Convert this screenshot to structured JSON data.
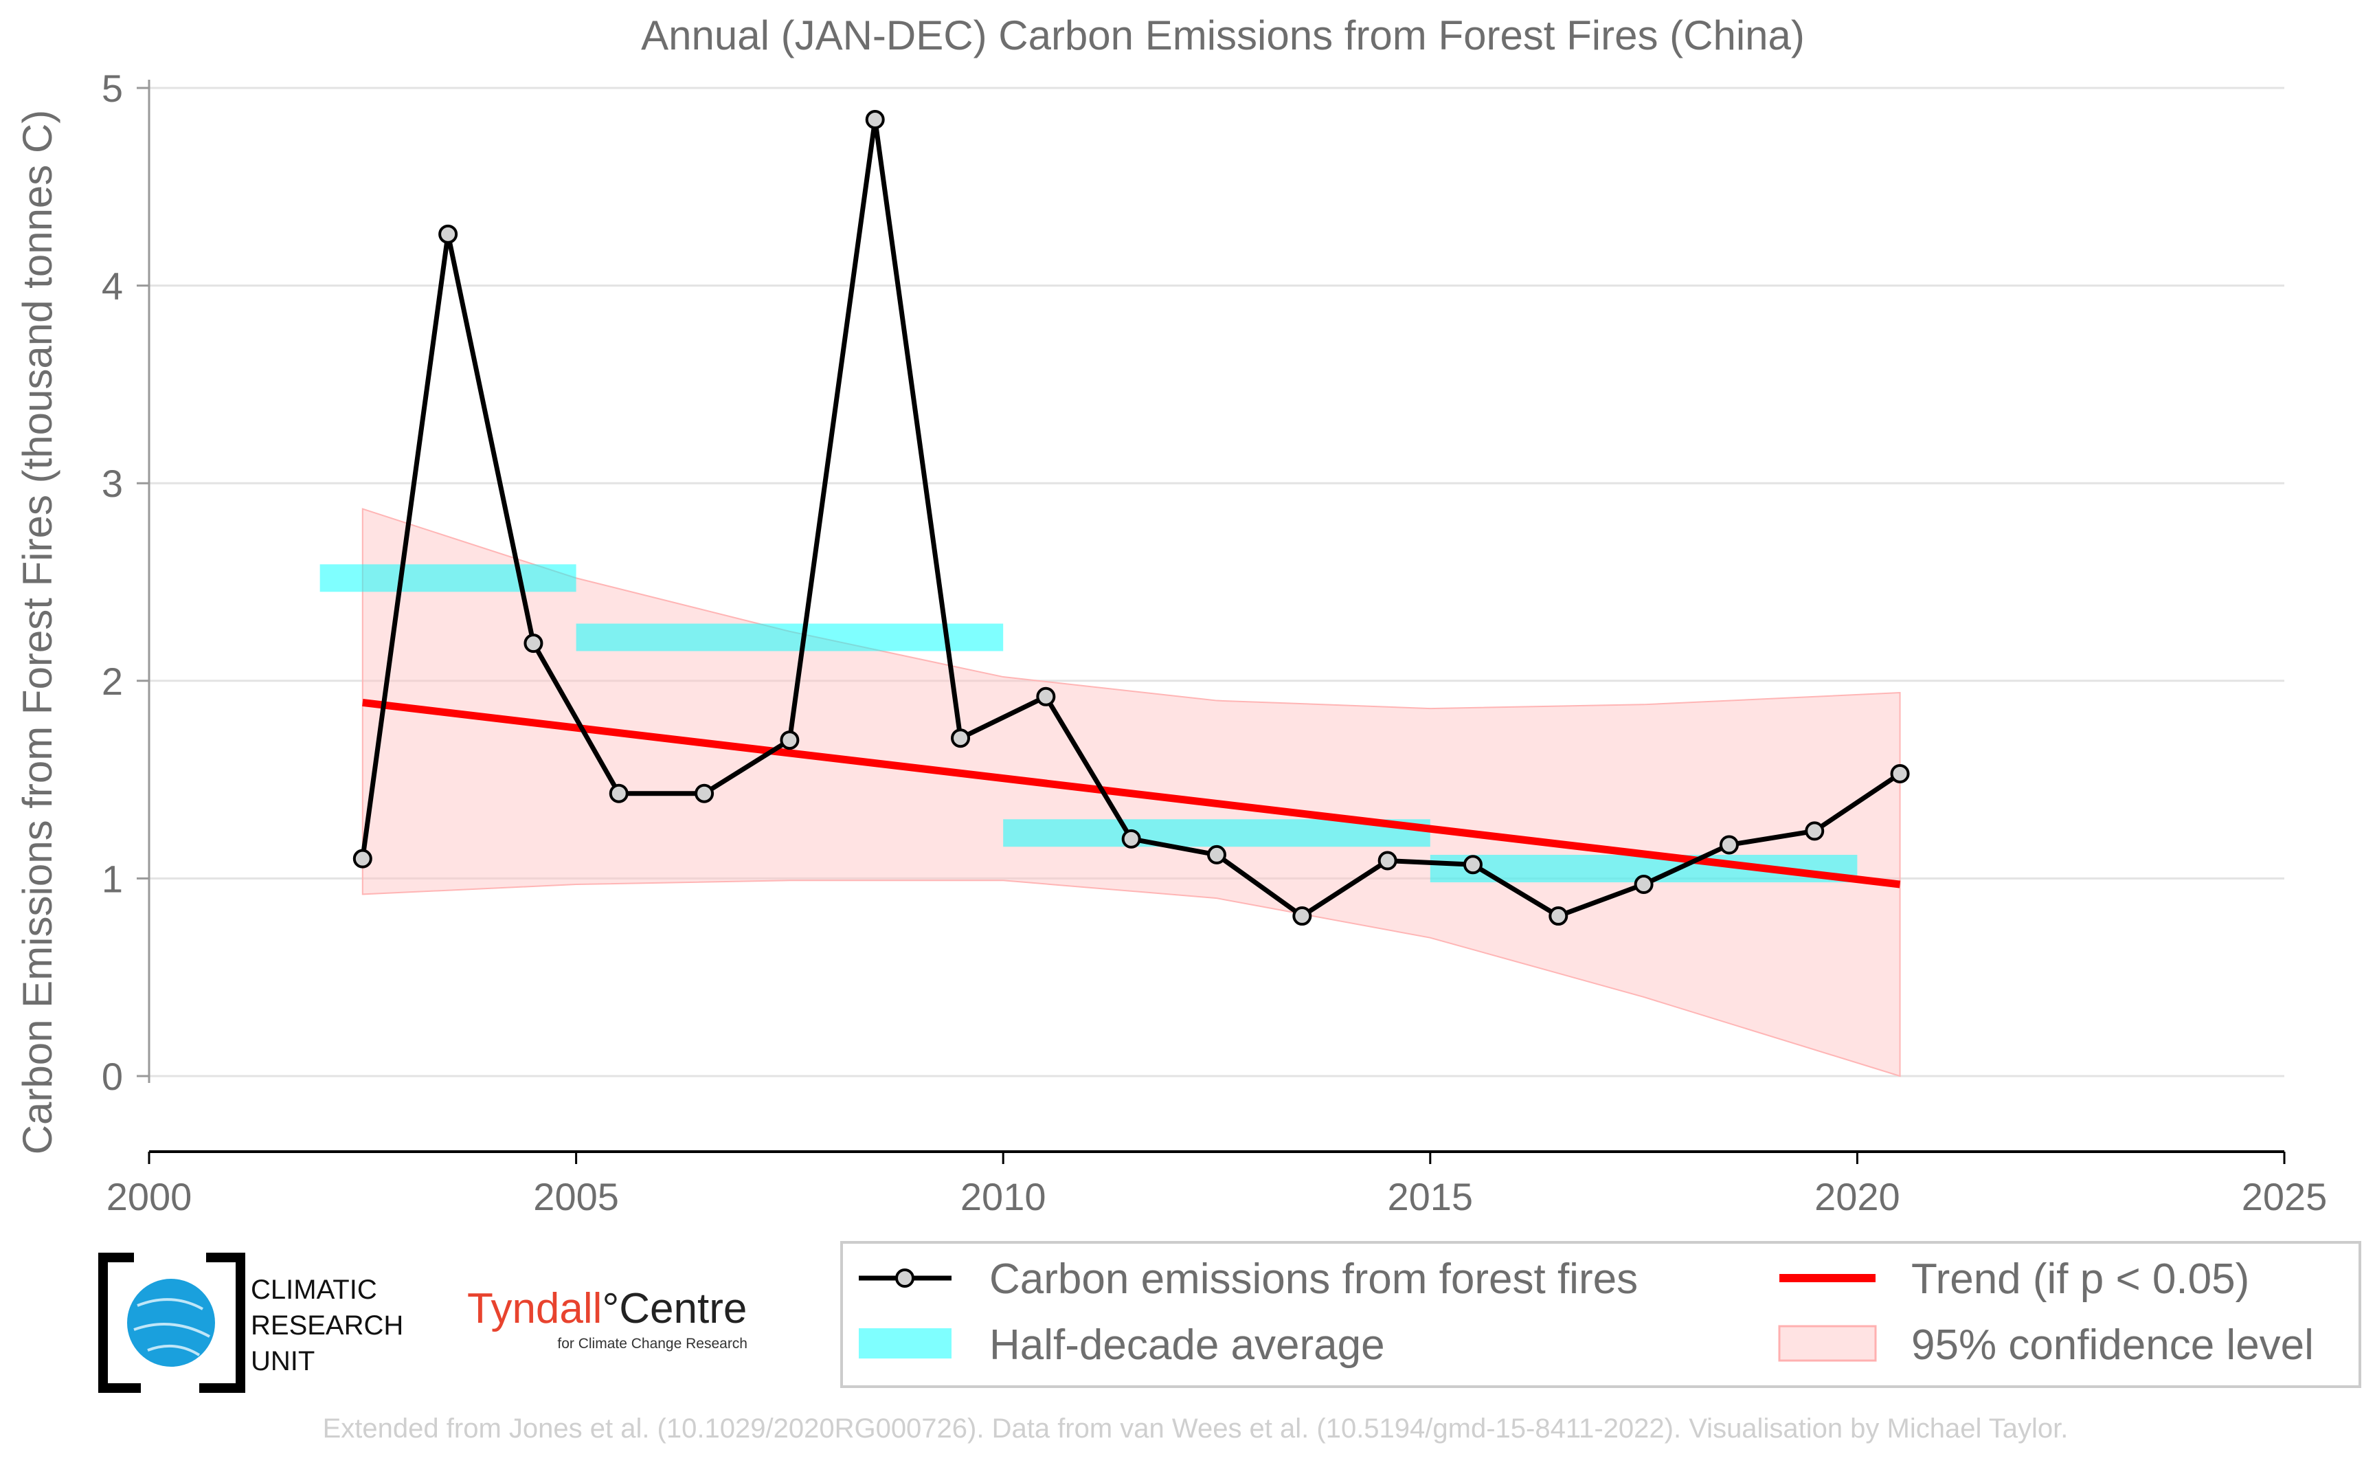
{
  "chart_data": {
    "type": "line",
    "title": "Annual (JAN-DEC) Carbon Emissions from Forest Fires (China)",
    "xlabel": "",
    "ylabel": "Carbon Emissions from Forest Fires (thousand tonnes C)",
    "xlim": [
      2000,
      2025
    ],
    "ylim": [
      0,
      5
    ],
    "xticks": [
      2000,
      2005,
      2010,
      2015,
      2020,
      2025
    ],
    "yticks": [
      0,
      1,
      2,
      3,
      4,
      5
    ],
    "grid": "horizontal",
    "legend_position": "bottom",
    "series": [
      {
        "name": "Carbon emissions from forest fires",
        "type": "line",
        "color": "#000000",
        "x": [
          2002.5,
          2003.5,
          2004.5,
          2005.5,
          2006.5,
          2007.5,
          2008.5,
          2009.5,
          2010.5,
          2011.5,
          2012.5,
          2013.5,
          2014.5,
          2015.5,
          2016.5,
          2017.5,
          2018.5,
          2019.5,
          2020.5
        ],
        "values": [
          1.1,
          4.26,
          2.19,
          1.43,
          1.43,
          1.7,
          4.84,
          1.71,
          1.92,
          1.2,
          1.12,
          0.81,
          1.09,
          1.07,
          0.81,
          0.97,
          1.17,
          1.24,
          1.53
        ]
      },
      {
        "name": "Half-decade average",
        "type": "segments",
        "color": "#00ffff",
        "segments": [
          {
            "x_start": 2002,
            "x_end": 2005,
            "value": 2.52
          },
          {
            "x_start": 2005,
            "x_end": 2010,
            "value": 2.22
          },
          {
            "x_start": 2010,
            "x_end": 2015,
            "value": 1.23
          },
          {
            "x_start": 2015,
            "x_end": 2020,
            "value": 1.05
          }
        ]
      },
      {
        "name": "Trend (if p < 0.05)",
        "type": "line",
        "color": "#ff0000",
        "x": [
          2002.5,
          2020.5
        ],
        "values": [
          1.89,
          0.97
        ]
      },
      {
        "name": "95% confidence level",
        "type": "band",
        "color": "#ffc0c0",
        "x": [
          2002.5,
          2005,
          2007.5,
          2010,
          2012.5,
          2015,
          2017.5,
          2020.5
        ],
        "upper": [
          2.87,
          2.52,
          2.25,
          2.02,
          1.9,
          1.86,
          1.88,
          1.94
        ],
        "lower": [
          0.92,
          0.97,
          0.99,
          0.99,
          0.9,
          0.7,
          0.4,
          0.0
        ]
      }
    ]
  },
  "legend": {
    "items": [
      {
        "label": "Carbon emissions from forest fires",
        "kind": "line-marker"
      },
      {
        "label": "Trend (if p < 0.05)",
        "kind": "line-red"
      },
      {
        "label": "Half-decade average",
        "kind": "patch-cyan"
      },
      {
        "label": "95% confidence level",
        "kind": "patch-pink"
      }
    ]
  },
  "logos": {
    "cru": {
      "line1": "CLIMATIC",
      "line2": "RESEARCH",
      "line3": "UNIT"
    },
    "tyndall": {
      "name_part1": "Tyndall",
      "degree": "°",
      "name_part2": "Centre",
      "subtitle": "for Climate Change Research"
    }
  },
  "credit": "Extended from Jones et al. (10.1029/2020RG000726). Data from van Wees et al. (10.5194/gmd-15-8411-2022). Visualisation by Michael Taylor."
}
